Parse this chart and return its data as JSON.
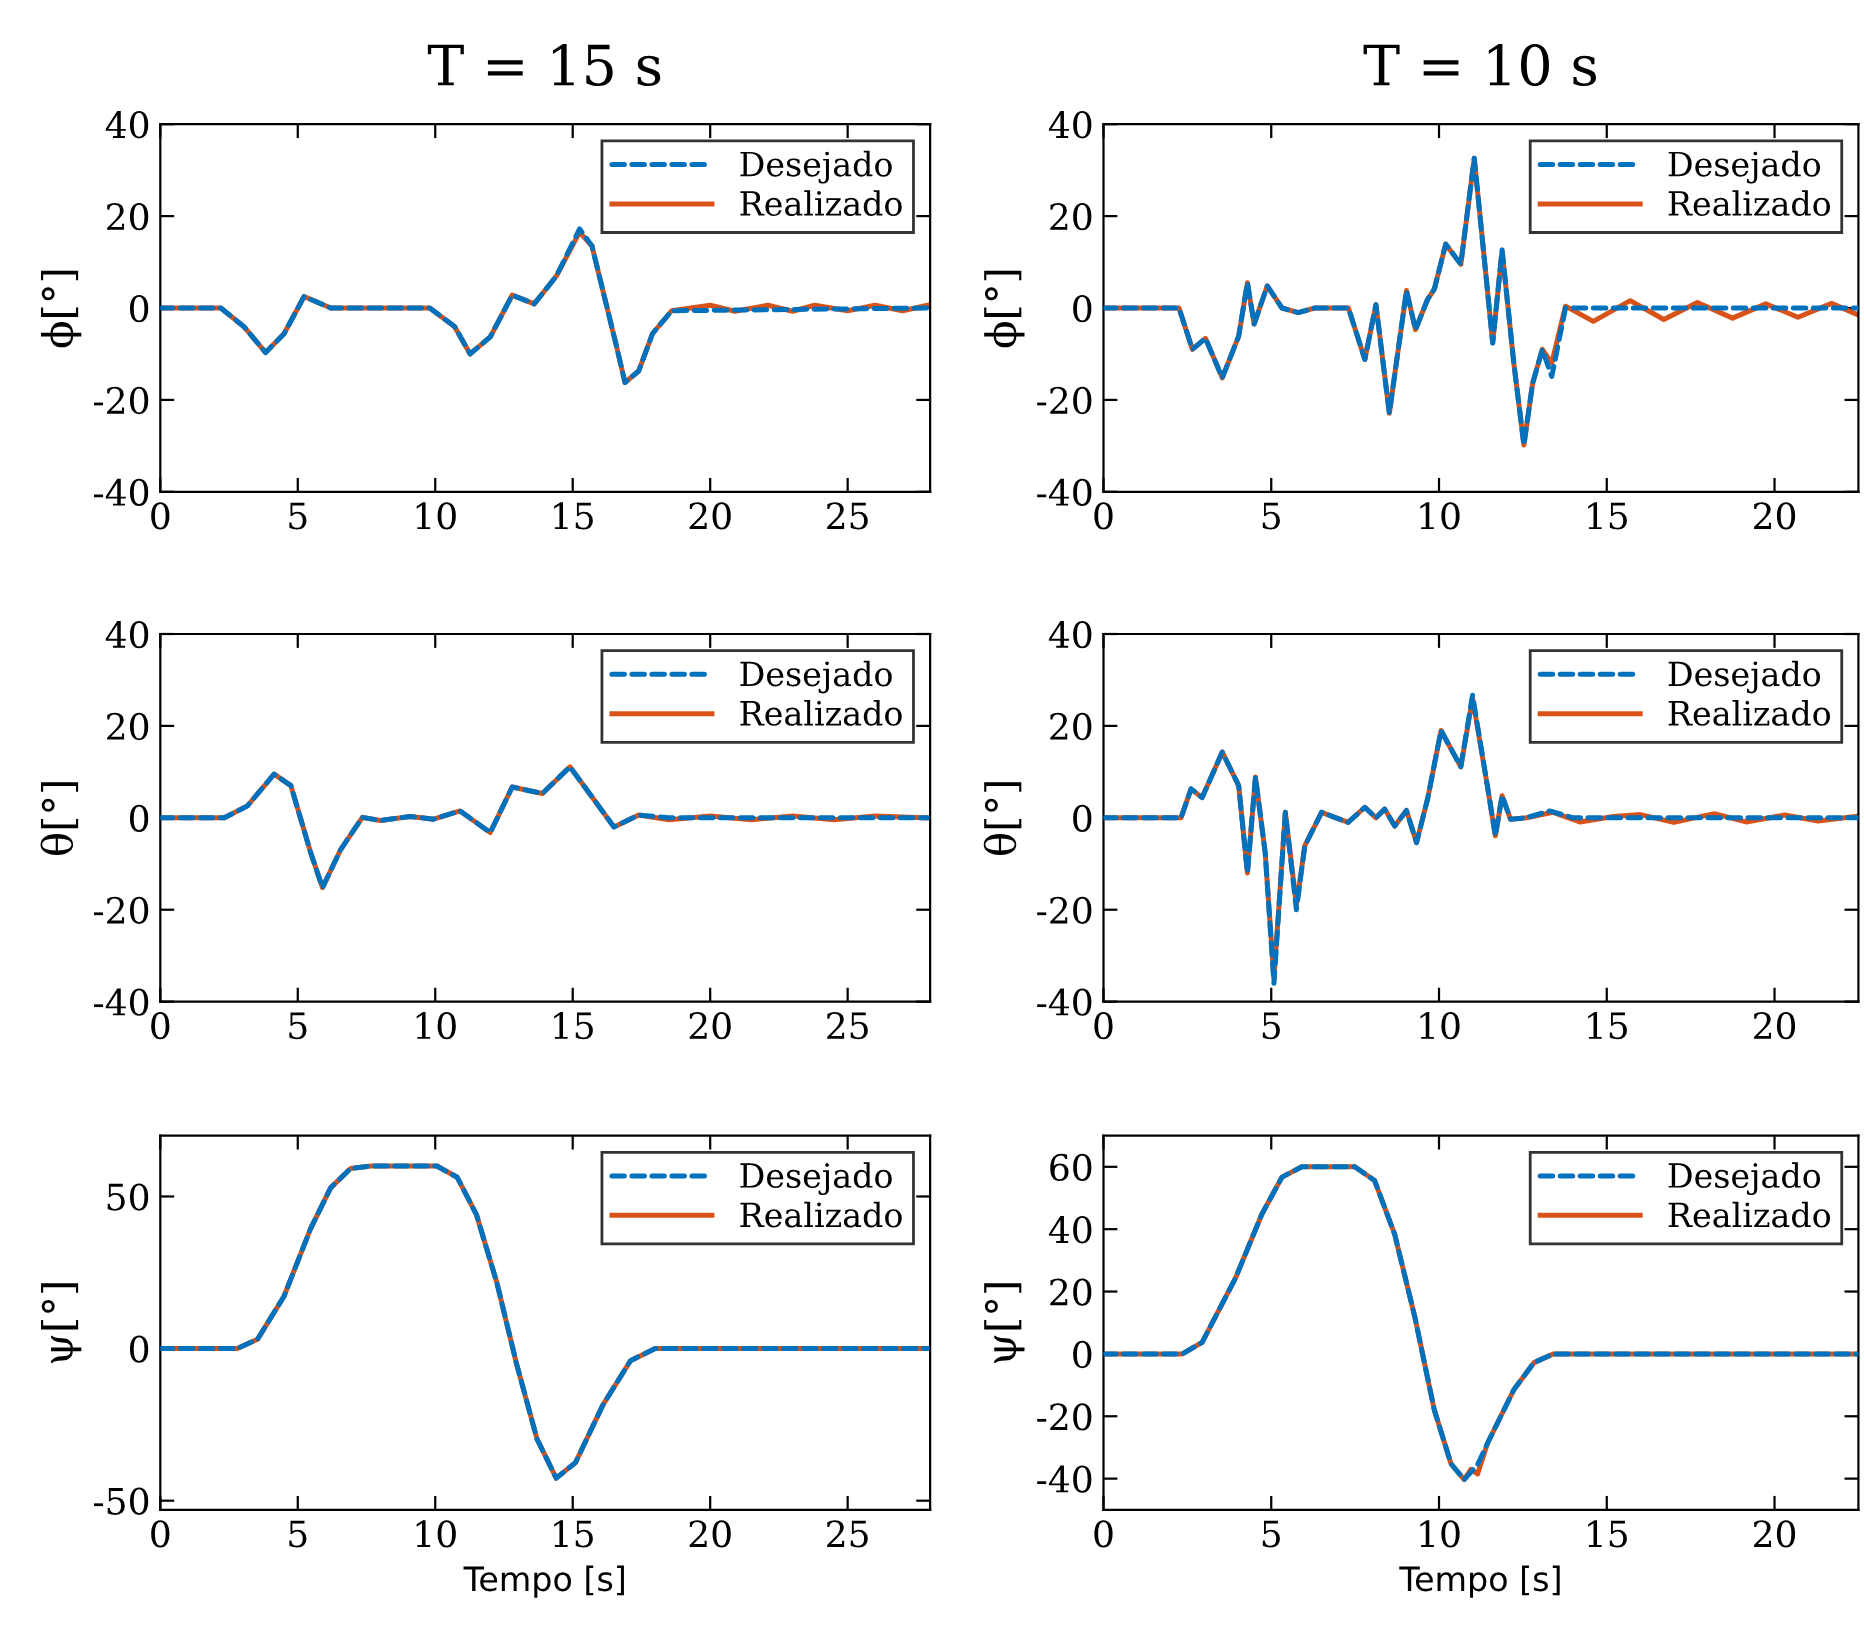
{
  "chart_data": [
    {
      "type": "line",
      "title": "T = 15 s",
      "ylabel": "ϕ[°]",
      "xlim": [
        0,
        28
      ],
      "xticks": [
        0,
        5,
        10,
        15,
        20,
        25
      ],
      "ylim": [
        -40,
        40
      ],
      "yticks": [
        -40,
        -20,
        0,
        20,
        40
      ],
      "legend": "top right",
      "grid": false,
      "series": [
        {
          "name": "Desejado",
          "color": "#0072bd",
          "line_style": "dashed",
          "x": [
            0,
            2.2,
            3.05,
            3.83,
            4.5,
            5.23,
            6.2,
            9.8,
            10.7,
            11.27,
            12,
            12.8,
            13.6,
            14.4,
            15.25,
            15.7,
            16.6,
            16.9,
            17.4,
            17.9,
            18.6,
            27.9
          ],
          "values": [
            0,
            0,
            -4.1,
            -9.7,
            -5.6,
            2.5,
            0,
            0,
            -4,
            -10,
            -6.3,
            2.8,
            0.9,
            6.9,
            17.2,
            13.5,
            -8.5,
            -16.2,
            -13.7,
            -5.6,
            -0.6,
            0
          ]
        },
        {
          "name": "Realizado",
          "color": "#d95319",
          "line_style": "solid",
          "x": [
            0,
            2.2,
            3.05,
            3.83,
            4.5,
            5.23,
            6.2,
            9.8,
            10.7,
            11.27,
            12,
            12.8,
            13.6,
            14.4,
            15.25,
            15.7,
            16.6,
            16.9,
            17.4,
            17.9,
            18.6,
            20,
            20.9,
            22.1,
            23,
            23.8,
            25,
            26,
            27,
            27.9
          ],
          "values": [
            0,
            0,
            -4.1,
            -9.7,
            -5.6,
            2.5,
            0,
            0,
            -4,
            -10,
            -6.3,
            2.8,
            0.9,
            6.9,
            16.5,
            13.5,
            -8.5,
            -16.2,
            -13.7,
            -5.6,
            -0.6,
            0.6,
            -0.7,
            0.6,
            -0.7,
            0.6,
            -0.6,
            0.6,
            -0.6,
            0.6
          ]
        }
      ]
    },
    {
      "type": "line",
      "title": "T = 10 s",
      "ylabel": "ϕ[°]",
      "xlim": [
        0,
        22.5
      ],
      "xticks": [
        0,
        5,
        10,
        15,
        20
      ],
      "ylim": [
        -40,
        40
      ],
      "yticks": [
        -40,
        -20,
        0,
        20,
        40
      ],
      "legend": "top right",
      "grid": false,
      "series": [
        {
          "name": "Desejado",
          "color": "#0072bd",
          "line_style": "dashed",
          "x": [
            0,
            2.25,
            2.65,
            3.04,
            3.54,
            4.03,
            4.29,
            4.49,
            4.88,
            5.32,
            5.8,
            6.3,
            7.3,
            7.79,
            8.12,
            8.52,
            9.03,
            9.3,
            9.66,
            9.86,
            10.2,
            10.65,
            11.05,
            11.6,
            11.88,
            12.23,
            12.53,
            12.79,
            13.08,
            13.36,
            13.77,
            22.5
          ],
          "values": [
            0,
            0,
            -9,
            -6.6,
            -15.2,
            -6.1,
            5.5,
            -3.5,
            4.8,
            0,
            -1,
            0,
            0,
            -11.2,
            0.7,
            -22.9,
            3.8,
            -4.7,
            1.9,
            4.1,
            13.9,
            9.5,
            32.6,
            -7.6,
            12.6,
            -12,
            -29.8,
            -16.4,
            -9,
            -14.9,
            0,
            0
          ]
        },
        {
          "name": "Realizado",
          "color": "#d95319",
          "line_style": "solid",
          "x": [
            0,
            2.25,
            2.65,
            3.04,
            3.54,
            4.03,
            4.29,
            4.49,
            4.88,
            5.32,
            5.8,
            6.3,
            7.3,
            7.79,
            8.12,
            8.52,
            9.03,
            9.3,
            9.66,
            9.86,
            10.2,
            10.65,
            11.05,
            11.6,
            11.88,
            12.23,
            12.53,
            12.79,
            13.08,
            13.36,
            13.77,
            14.6,
            15.7,
            16.7,
            17.7,
            18.75,
            19.74,
            20.7,
            21.7,
            22.5
          ],
          "values": [
            0,
            0,
            -9,
            -6.6,
            -15.2,
            -6.1,
            5.5,
            -3.5,
            4.8,
            0,
            -1,
            0,
            0,
            -11.2,
            0.7,
            -22.9,
            3.8,
            -4.7,
            1.9,
            4.1,
            13.9,
            9.5,
            32.6,
            -7.6,
            12.6,
            -12,
            -29.8,
            -16.4,
            -9,
            -12,
            0.4,
            -2.9,
            1.6,
            -2.5,
            1.2,
            -2.2,
            0.9,
            -2,
            1,
            -1.5
          ]
        }
      ]
    },
    {
      "type": "line",
      "ylabel": "θ[°]",
      "xlim": [
        0,
        28
      ],
      "xticks": [
        0,
        5,
        10,
        15,
        20,
        25
      ],
      "ylim": [
        -40,
        40
      ],
      "yticks": [
        -40,
        -20,
        0,
        20,
        40
      ],
      "legend": "top right",
      "grid": false,
      "series": [
        {
          "name": "Desejado",
          "color": "#0072bd",
          "line_style": "dashed",
          "x": [
            0,
            2.33,
            3.17,
            4.14,
            4.75,
            5.47,
            5.9,
            6.56,
            7.35,
            8,
            9.1,
            9.94,
            10.9,
            12,
            12.8,
            13.9,
            14.9,
            16.5,
            17.4,
            18.5,
            27.9
          ],
          "values": [
            0,
            0,
            2.6,
            9.5,
            7,
            -7.6,
            -15.2,
            -6.9,
            0.1,
            -0.6,
            0.3,
            -0.3,
            1.5,
            -3.2,
            6.7,
            5.3,
            11.1,
            -2,
            0.6,
            0,
            0
          ]
        },
        {
          "name": "Realizado",
          "color": "#d95319",
          "line_style": "solid",
          "x": [
            0,
            2.33,
            3.17,
            4.14,
            4.75,
            5.47,
            5.9,
            6.56,
            7.35,
            8,
            9.1,
            9.94,
            10.9,
            12,
            12.8,
            13.9,
            14.9,
            16.5,
            17.4,
            18.5,
            20,
            21.5,
            23,
            24.5,
            26,
            27.9
          ],
          "values": [
            0,
            0,
            2.6,
            9.5,
            7,
            -7.6,
            -15.2,
            -6.9,
            0.1,
            -0.6,
            0.3,
            -0.3,
            1.5,
            -3.2,
            6.7,
            5.3,
            11.1,
            -2,
            0.6,
            -0.4,
            0.4,
            -0.4,
            0.4,
            -0.4,
            0.4,
            0
          ]
        }
      ]
    },
    {
      "type": "line",
      "ylabel": "θ[°]",
      "xlim": [
        0,
        22.5
      ],
      "xticks": [
        0,
        5,
        10,
        15,
        20
      ],
      "ylim": [
        -40,
        40
      ],
      "yticks": [
        -40,
        -20,
        0,
        20,
        40
      ],
      "legend": "top right",
      "grid": false,
      "series": [
        {
          "name": "Desejado",
          "color": "#0072bd",
          "line_style": "dashed",
          "x": [
            0,
            2.31,
            2.61,
            2.94,
            3.54,
            4.03,
            4.29,
            4.53,
            4.82,
            5.08,
            5.42,
            5.75,
            6,
            6.5,
            7.29,
            7.79,
            8.12,
            8.38,
            8.68,
            9.03,
            9.33,
            9.66,
            10.06,
            10.65,
            11,
            11.44,
            11.68,
            11.88,
            12.13,
            12.6,
            13.3,
            14,
            22.5
          ],
          "values": [
            0,
            0,
            6.3,
            4.4,
            14.3,
            7,
            -12,
            8.9,
            -7.6,
            -36,
            1.2,
            -20,
            -6.1,
            1.2,
            -1,
            2.3,
            0,
            1.9,
            -1.8,
            1.6,
            -5.4,
            4.1,
            19,
            11.1,
            26.7,
            7,
            -3.9,
            4.8,
            -0.3,
            0,
            1.5,
            0,
            0
          ]
        },
        {
          "name": "Realizado",
          "color": "#d95319",
          "line_style": "solid",
          "x": [
            0,
            2.31,
            2.61,
            2.94,
            3.54,
            4.03,
            4.29,
            4.53,
            4.82,
            5.08,
            5.42,
            5.75,
            6,
            6.5,
            7.29,
            7.79,
            8.12,
            8.38,
            8.68,
            9.03,
            9.33,
            9.66,
            10.06,
            10.65,
            11,
            11.44,
            11.68,
            11.88,
            12.13,
            12.6,
            13.4,
            14.2,
            15.2,
            16,
            17,
            18.2,
            19.15,
            20.3,
            21.3,
            22.5
          ],
          "values": [
            0,
            0,
            6.3,
            4.4,
            14.3,
            7,
            -12,
            8.9,
            -7.6,
            -35,
            1.2,
            -19,
            -6.1,
            1.2,
            -1,
            2.3,
            0,
            1.9,
            -1.8,
            1.6,
            -5.4,
            4.1,
            19,
            11.1,
            26,
            7,
            -3.9,
            4.8,
            -0.3,
            0,
            1.2,
            -0.9,
            0.3,
            0.7,
            -1,
            0.9,
            -0.9,
            0.6,
            -0.7,
            0.4
          ]
        }
      ]
    },
    {
      "type": "line",
      "ylabel": "ψ[°]",
      "xlabel": "Tempo [s]",
      "xlim": [
        0,
        28
      ],
      "xticks": [
        0,
        5,
        10,
        15,
        20,
        25
      ],
      "ylim": [
        -53,
        70
      ],
      "yticks": [
        -50,
        0,
        50
      ],
      "legend": "top right",
      "grid": false,
      "series": [
        {
          "name": "Desejado",
          "color": "#0072bd",
          "line_style": "dashed",
          "x": [
            0,
            2.8,
            3.54,
            4.5,
            5.47,
            6.2,
            6.92,
            7.65,
            10.06,
            10.8,
            11.5,
            12.24,
            12.96,
            13.7,
            14.4,
            15.1,
            16.1,
            17.1,
            18,
            27.9
          ],
          "values": [
            0,
            0,
            3.1,
            17.2,
            39.5,
            52.9,
            59.2,
            60,
            60,
            56.3,
            44,
            21.7,
            -5.1,
            -29.7,
            -42.6,
            -37.5,
            -18.5,
            -4,
            0,
            0
          ]
        },
        {
          "name": "Realizado",
          "color": "#d95319",
          "line_style": "solid",
          "x": [
            0,
            2.8,
            3.54,
            4.5,
            5.47,
            6.2,
            6.92,
            7.65,
            10.06,
            10.8,
            11.5,
            12.24,
            12.96,
            13.7,
            14.4,
            15.1,
            16.1,
            17.1,
            18,
            27.9
          ],
          "values": [
            0,
            0,
            3.1,
            17.2,
            39.5,
            52.9,
            59.2,
            60,
            60,
            56.3,
            44,
            21.7,
            -5.1,
            -29.7,
            -42.6,
            -37.5,
            -18.5,
            -4,
            0,
            0
          ]
        }
      ]
    },
    {
      "type": "line",
      "ylabel": "ψ[°]",
      "xlabel": "Tempo [s]",
      "xlim": [
        0,
        22.5
      ],
      "xticks": [
        0,
        5,
        10,
        15,
        20
      ],
      "ylim": [
        -50,
        70
      ],
      "yticks": [
        -40,
        -20,
        0,
        20,
        40,
        60
      ],
      "legend": "top right",
      "grid": false,
      "series": [
        {
          "name": "Desejado",
          "color": "#0072bd",
          "line_style": "dashed",
          "x": [
            0,
            2.35,
            2.94,
            3.93,
            4.72,
            5.32,
            5.91,
            7.49,
            8.08,
            8.68,
            9.27,
            9.86,
            10.36,
            10.75,
            11.15,
            11.44,
            12.23,
            12.83,
            13.4,
            22.5
          ],
          "values": [
            0,
            0,
            3.7,
            24.2,
            44.8,
            56.7,
            60,
            60,
            55.6,
            38.3,
            12.3,
            -18,
            -35.3,
            -40.3,
            -35.5,
            -28.8,
            -11.5,
            -2.8,
            0,
            0
          ]
        },
        {
          "name": "Realizado",
          "color": "#d95319",
          "line_style": "solid",
          "x": [
            0,
            2.35,
            2.94,
            3.93,
            4.72,
            5.32,
            5.91,
            7.49,
            8.08,
            8.68,
            9.27,
            9.86,
            10.36,
            10.75,
            10.95,
            11.15,
            11.44,
            12.23,
            12.83,
            13.4,
            22.5
          ],
          "values": [
            0,
            0,
            3.7,
            24.2,
            44.8,
            56.7,
            60,
            60,
            55.6,
            38.3,
            12.3,
            -18,
            -35.3,
            -40.3,
            -37,
            -38.5,
            -28.8,
            -11.5,
            -2.8,
            0,
            0
          ]
        }
      ]
    }
  ]
}
